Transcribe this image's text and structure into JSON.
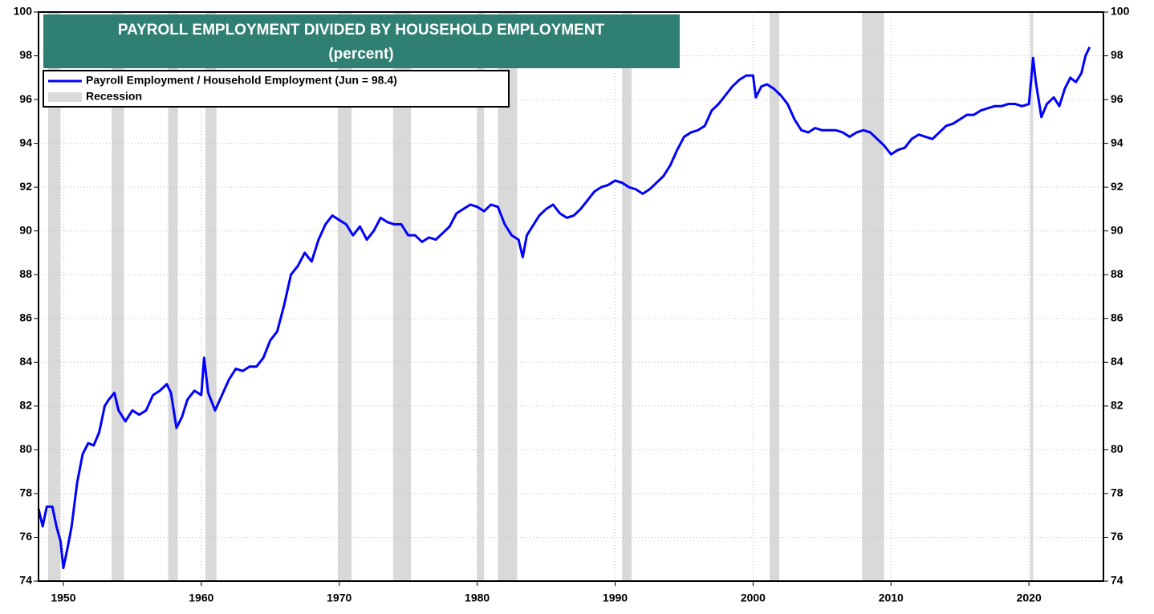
{
  "chart_data": {
    "type": "line",
    "title": "PAYROLL EMPLOYMENT DIVIDED BY HOUSEHOLD EMPLOYMENT",
    "subtitle": "(percent)",
    "xlim": [
      1948.2,
      2025.4
    ],
    "xticks": [
      1950,
      1960,
      1970,
      1980,
      1990,
      2000,
      2010,
      2020
    ],
    "ylim": [
      74,
      100
    ],
    "yticks": [
      74,
      76,
      78,
      80,
      82,
      84,
      86,
      88,
      90,
      92,
      94,
      96,
      98,
      100
    ],
    "grid": true,
    "legend": "upper left",
    "recession": {
      "name": "Recession",
      "color": "#d9d9d9",
      "spans": [
        [
          1948.9,
          1949.8
        ],
        [
          1953.5,
          1954.4
        ],
        [
          1957.6,
          1958.3
        ],
        [
          1960.3,
          1961.1
        ],
        [
          1969.9,
          1970.9
        ],
        [
          1973.9,
          1975.2
        ],
        [
          1980.0,
          1980.5
        ],
        [
          1981.5,
          1982.9
        ],
        [
          1990.5,
          1991.2
        ],
        [
          2001.2,
          2001.9
        ],
        [
          2007.9,
          2009.5
        ],
        [
          2020.1,
          2020.3
        ]
      ]
    },
    "series": [
      {
        "name": "Payroll Employment / Household Employment (Jun = 98.4)",
        "color": "#0000ff",
        "x": [
          1948.2,
          1948.5,
          1948.8,
          1949.2,
          1949.5,
          1949.8,
          1950.0,
          1950.3,
          1950.6,
          1951.0,
          1951.4,
          1951.8,
          1952.2,
          1952.6,
          1953.0,
          1953.3,
          1953.7,
          1954.0,
          1954.5,
          1955.0,
          1955.5,
          1956.0,
          1956.5,
          1957.0,
          1957.5,
          1957.8,
          1958.2,
          1958.6,
          1959.0,
          1959.5,
          1960.0,
          1960.2,
          1960.5,
          1961.0,
          1961.5,
          1962.0,
          1962.5,
          1963.0,
          1963.5,
          1964.0,
          1964.5,
          1965.0,
          1965.5,
          1966.0,
          1966.5,
          1967.0,
          1967.5,
          1968.0,
          1968.5,
          1969.0,
          1969.5,
          1970.0,
          1970.5,
          1971.0,
          1971.5,
          1972.0,
          1972.5,
          1973.0,
          1973.5,
          1974.0,
          1974.5,
          1975.0,
          1975.5,
          1976.0,
          1976.5,
          1977.0,
          1977.5,
          1978.0,
          1978.5,
          1979.0,
          1979.5,
          1980.0,
          1980.5,
          1981.0,
          1981.5,
          1982.0,
          1982.5,
          1983.0,
          1983.3,
          1983.6,
          1984.0,
          1984.5,
          1985.0,
          1985.5,
          1986.0,
          1986.5,
          1987.0,
          1987.5,
          1988.0,
          1988.5,
          1989.0,
          1989.5,
          1990.0,
          1990.5,
          1991.0,
          1991.5,
          1992.0,
          1992.5,
          1993.0,
          1993.5,
          1994.0,
          1994.5,
          1995.0,
          1995.5,
          1996.0,
          1996.5,
          1997.0,
          1997.5,
          1998.0,
          1998.5,
          1999.0,
          1999.5,
          2000.0,
          2000.2,
          2000.6,
          2001.0,
          2001.5,
          2002.0,
          2002.5,
          2003.0,
          2003.5,
          2004.0,
          2004.5,
          2005.0,
          2005.5,
          2006.0,
          2006.5,
          2007.0,
          2007.5,
          2008.0,
          2008.5,
          2009.0,
          2009.5,
          2010.0,
          2010.5,
          2011.0,
          2011.5,
          2012.0,
          2012.5,
          2013.0,
          2013.5,
          2014.0,
          2014.5,
          2015.0,
          2015.5,
          2016.0,
          2016.5,
          2017.0,
          2017.5,
          2018.0,
          2018.5,
          2019.0,
          2019.5,
          2020.0,
          2020.3,
          2020.5,
          2020.9,
          2021.3,
          2021.8,
          2022.2,
          2022.6,
          2023.0,
          2023.4,
          2023.8,
          2024.1,
          2024.4
        ],
        "values": [
          77.3,
          76.5,
          77.4,
          77.4,
          76.5,
          75.8,
          74.6,
          75.5,
          76.5,
          78.5,
          79.8,
          80.3,
          80.2,
          80.8,
          82.0,
          82.3,
          82.6,
          81.8,
          81.3,
          81.8,
          81.6,
          81.8,
          82.5,
          82.7,
          83.0,
          82.6,
          81.0,
          81.5,
          82.3,
          82.7,
          82.5,
          84.2,
          82.6,
          81.8,
          82.5,
          83.2,
          83.7,
          83.6,
          83.8,
          83.8,
          84.2,
          85.0,
          85.4,
          86.6,
          88.0,
          88.4,
          89.0,
          88.6,
          89.6,
          90.3,
          90.7,
          90.5,
          90.3,
          89.8,
          90.2,
          89.6,
          90.0,
          90.6,
          90.4,
          90.3,
          90.3,
          89.8,
          89.8,
          89.5,
          89.7,
          89.6,
          89.9,
          90.2,
          90.8,
          91.0,
          91.2,
          91.1,
          90.9,
          91.2,
          91.1,
          90.3,
          89.8,
          89.6,
          88.8,
          89.8,
          90.2,
          90.7,
          91.0,
          91.2,
          90.8,
          90.6,
          90.7,
          91.0,
          91.4,
          91.8,
          92.0,
          92.1,
          92.3,
          92.2,
          92.0,
          91.9,
          91.7,
          91.9,
          92.2,
          92.5,
          93.0,
          93.7,
          94.3,
          94.5,
          94.6,
          94.8,
          95.5,
          95.8,
          96.2,
          96.6,
          96.9,
          97.1,
          97.1,
          96.1,
          96.6,
          96.7,
          96.5,
          96.2,
          95.8,
          95.1,
          94.6,
          94.5,
          94.7,
          94.6,
          94.6,
          94.6,
          94.5,
          94.3,
          94.5,
          94.6,
          94.5,
          94.2,
          93.9,
          93.5,
          93.7,
          93.8,
          94.2,
          94.4,
          94.3,
          94.2,
          94.5,
          94.8,
          94.9,
          95.1,
          95.3,
          95.3,
          95.5,
          95.6,
          95.7,
          95.7,
          95.8,
          95.8,
          95.7,
          95.8,
          97.9,
          96.8,
          95.2,
          95.8,
          96.1,
          95.7,
          96.5,
          97.0,
          96.8,
          97.2,
          98.0,
          98.4
        ]
      }
    ]
  }
}
